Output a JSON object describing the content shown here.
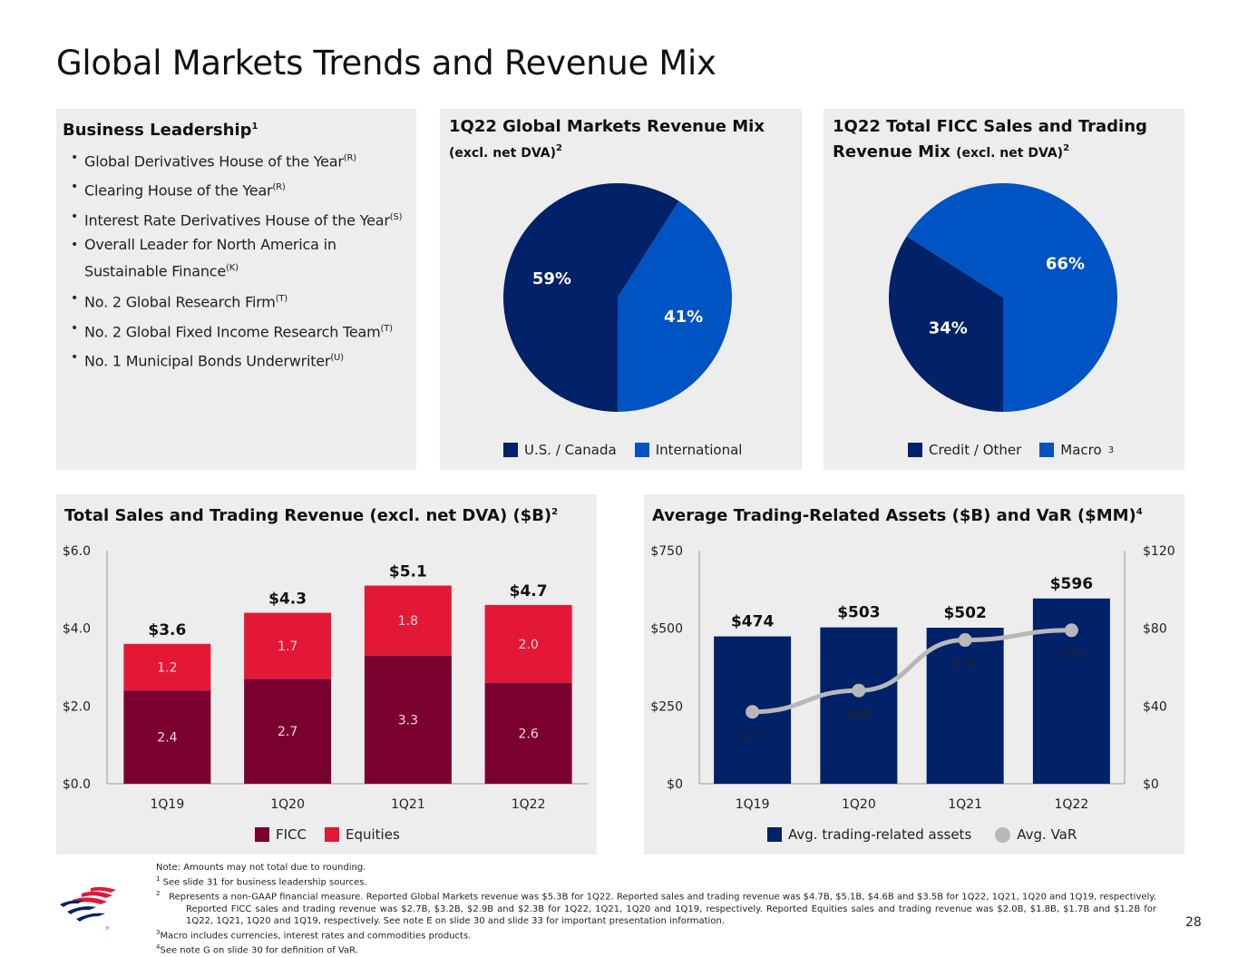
{
  "slide": {
    "title": "Global Markets Trends and Revenue Mix",
    "page_number": "28"
  },
  "leadership": {
    "title": "Business Leadership",
    "title_sup": "1",
    "items": [
      {
        "text": "Global Derivatives House of the Year",
        "sup": "(R)"
      },
      {
        "text": "Clearing House of the Year",
        "sup": "(R)"
      },
      {
        "text": "Interest Rate Derivatives House of the Year",
        "sup": "(S)"
      },
      {
        "text": "Overall Leader for North America in",
        "text2": "Sustainable Finance",
        "sup": "(K)"
      },
      {
        "text": "No. 2 Global Research Firm",
        "sup": "(T)"
      },
      {
        "text": "No. 2 Global Fixed Income Research Team",
        "sup": "(T)"
      },
      {
        "text": "No. 1 Municipal Bonds Underwriter",
        "sup": "(U)"
      }
    ]
  },
  "colors": {
    "navy": "#012169",
    "blue": "#0053c2",
    "maroon": "#7a0030",
    "red": "#e31837",
    "grey_line": "#b8b8b8",
    "panel_bg": "#ededed"
  },
  "mix": {
    "title": "1Q22 Global Markets Revenue Mix",
    "subtitle": "(excl. net DVA)",
    "subtitle_sup": "2",
    "legend": [
      "U.S. / Canada",
      "International"
    ]
  },
  "ficc_mix": {
    "title_line1": "1Q22 Total FICC Sales and Trading",
    "title_line2": "Revenue Mix",
    "subtitle": "(excl. net DVA)",
    "subtitle_sup": "2",
    "legend": [
      "Credit / Other",
      "Macro"
    ],
    "legend_sup": "3"
  },
  "sat": {
    "title": "Total Sales and Trading Revenue (excl. net DVA) ($B)",
    "title_sup": "2",
    "legend": [
      "FICC",
      "Equities"
    ]
  },
  "avg": {
    "title": "Average Trading-Related Assets ($B) and VaR ($MM)",
    "title_sup": "4",
    "legend": [
      "Avg. trading-related assets",
      "Avg. VaR"
    ]
  },
  "chart_data": [
    {
      "type": "pie",
      "title": "1Q22 Global Markets Revenue Mix (excl. net DVA)",
      "labels": [
        "U.S. / Canada",
        "International"
      ],
      "values": [
        59,
        41
      ],
      "value_labels": [
        "59%",
        "41%"
      ]
    },
    {
      "type": "pie",
      "title": "1Q22 Total FICC Sales and Trading Revenue Mix (excl. net DVA)",
      "labels": [
        "Credit / Other",
        "Macro"
      ],
      "values": [
        34,
        66
      ],
      "value_labels": [
        "34%",
        "66%"
      ]
    },
    {
      "type": "bar",
      "stacked": true,
      "title": "Total Sales and Trading Revenue (excl. net DVA) ($B)",
      "categories": [
        "1Q19",
        "1Q20",
        "1Q21",
        "1Q22"
      ],
      "series": [
        {
          "name": "FICC",
          "values": [
            2.4,
            2.7,
            3.3,
            2.6
          ],
          "labels": [
            "2.4",
            "2.7",
            "3.3",
            "2.6"
          ]
        },
        {
          "name": "Equities",
          "values": [
            1.2,
            1.7,
            1.8,
            2.0
          ],
          "labels": [
            "1.2",
            "1.7",
            "1.8",
            "2.0"
          ]
        }
      ],
      "totals": [
        3.6,
        4.3,
        5.1,
        4.7
      ],
      "total_labels": [
        "$3.6",
        "$4.3",
        "$5.1",
        "$4.7"
      ],
      "ylim": [
        0,
        6
      ],
      "yticks": [
        "$0.0",
        "$2.0",
        "$4.0",
        "$6.0"
      ],
      "yticks_values": [
        0,
        2,
        4,
        6
      ]
    },
    {
      "type": "bar",
      "title": "Average Trading-Related Assets ($B) and VaR ($MM)",
      "categories": [
        "1Q19",
        "1Q20",
        "1Q21",
        "1Q22"
      ],
      "series": [
        {
          "name": "Avg. trading-related assets",
          "type": "bar",
          "axis": "left",
          "values": [
            474,
            503,
            502,
            596
          ],
          "labels": [
            "$474",
            "$503",
            "$502",
            "$596"
          ]
        },
        {
          "name": "Avg. VaR",
          "type": "line",
          "axis": "right",
          "values": [
            37,
            48,
            74,
            79
          ],
          "labels": [
            "$37",
            "$48",
            "$74",
            "$79"
          ]
        }
      ],
      "ylim_left": [
        0,
        750
      ],
      "yticks_left": [
        "$0",
        "$250",
        "$500",
        "$750"
      ],
      "yticks_left_values": [
        0,
        250,
        500,
        750
      ],
      "ylim_right": [
        0,
        120
      ],
      "yticks_right": [
        "$0",
        "$40",
        "$80",
        "$120"
      ],
      "yticks_right_values": [
        0,
        40,
        80,
        120
      ]
    }
  ],
  "footnotes": {
    "note": "Note: Amounts may not total due to rounding.",
    "f1": "See slide 31 for business leadership sources.",
    "f2": "Represents a non-GAAP financial measure. Reported Global Markets revenue was $5.3B for 1Q22. Reported sales and trading revenue was $4.7B, $5.1B, $4.6B and $3.5B for 1Q22, 1Q21, 1Q20 and 1Q19, respectively. Reported FICC sales and trading revenue was $2.7B, $3.2B, $2.9B and $2.3B for 1Q22, 1Q21, 1Q20 and 1Q19, respectively. Reported Equities sales and trading revenue was $2.0B, $1.8B, $1.7B and $1.2B for 1Q22, 1Q21, 1Q20 and 1Q19, respectively. See note E on slide 30 and slide 33 for important presentation information.",
    "f3": "Macro includes currencies, interest rates and commodities products.",
    "f4": "See note G on slide 30 for definition of VaR.",
    "markers": [
      "1",
      "2",
      "3",
      "4"
    ]
  },
  "logo": {
    "icon": "bank-flag-logo-icon"
  }
}
